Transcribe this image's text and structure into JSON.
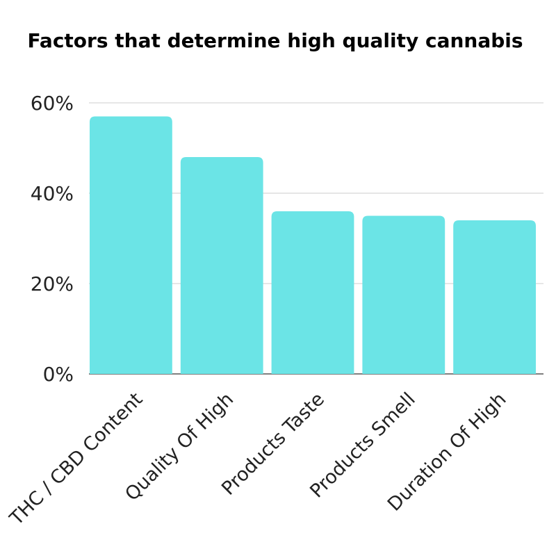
{
  "chart_data": {
    "type": "bar",
    "title": "Factors that determine high quality cannabis",
    "xlabel": "",
    "ylabel": "",
    "categories": [
      "THC / CBD Content",
      "Quality Of High",
      "Products Taste",
      "Products Smell",
      "Duration Of High"
    ],
    "values": [
      57,
      48,
      36,
      35,
      34
    ],
    "ylim": [
      0,
      60
    ],
    "yticks": [
      0,
      20,
      40,
      60
    ],
    "ytick_labels": [
      "0%",
      "20%",
      "40%",
      "60%"
    ],
    "grid": true,
    "legend": "none",
    "colors": {
      "bar": "#6be4e6",
      "grid": "#cccccc",
      "baseline": "#333333"
    }
  }
}
